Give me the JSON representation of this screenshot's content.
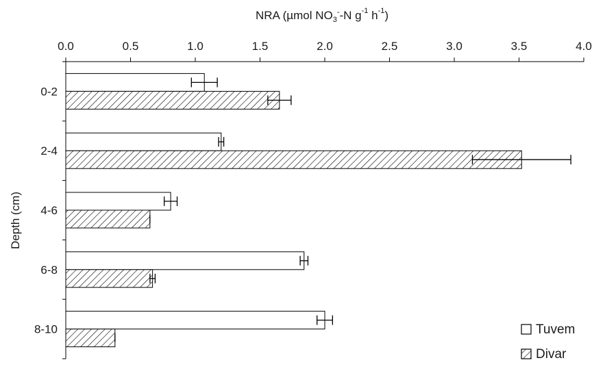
{
  "chart_data": {
    "type": "bar",
    "orientation": "horizontal",
    "title": "",
    "xlabel": "NRA (µmol NO3--N g-1 h-1)",
    "xlabel_parts": [
      "NRA (µmol  NO",
      "3",
      "-",
      "-N g",
      "-1",
      " h",
      "-1",
      ")"
    ],
    "ylabel": "Depth (cm)",
    "x_axis_position": "top",
    "xlim": [
      0,
      4.0
    ],
    "x_ticks": [
      "0.0",
      "0.5",
      "1.0",
      "1.5",
      "2.0",
      "2.5",
      "3.0",
      "3.5",
      "4.0"
    ],
    "categories": [
      "0-2",
      "2-4",
      "4-6",
      "6-8",
      "8-10"
    ],
    "series": [
      {
        "name": "Tuvem",
        "fill": "white",
        "values": [
          1.07,
          1.2,
          0.81,
          1.84,
          2.0
        ],
        "errors": [
          0.1,
          0.02,
          0.05,
          0.03,
          0.06
        ]
      },
      {
        "name": "Divar",
        "fill": "hatched",
        "values": [
          1.65,
          3.52,
          0.65,
          0.67,
          0.38
        ],
        "errors": [
          0.09,
          0.38,
          0.0,
          0.02,
          0.0
        ]
      }
    ],
    "grid": false,
    "legend_position": "bottom-right",
    "colors": {
      "axis": "#000000",
      "bar_fill": "#ffffff",
      "hatch": "#000000",
      "text": "#1a1a1a"
    }
  }
}
